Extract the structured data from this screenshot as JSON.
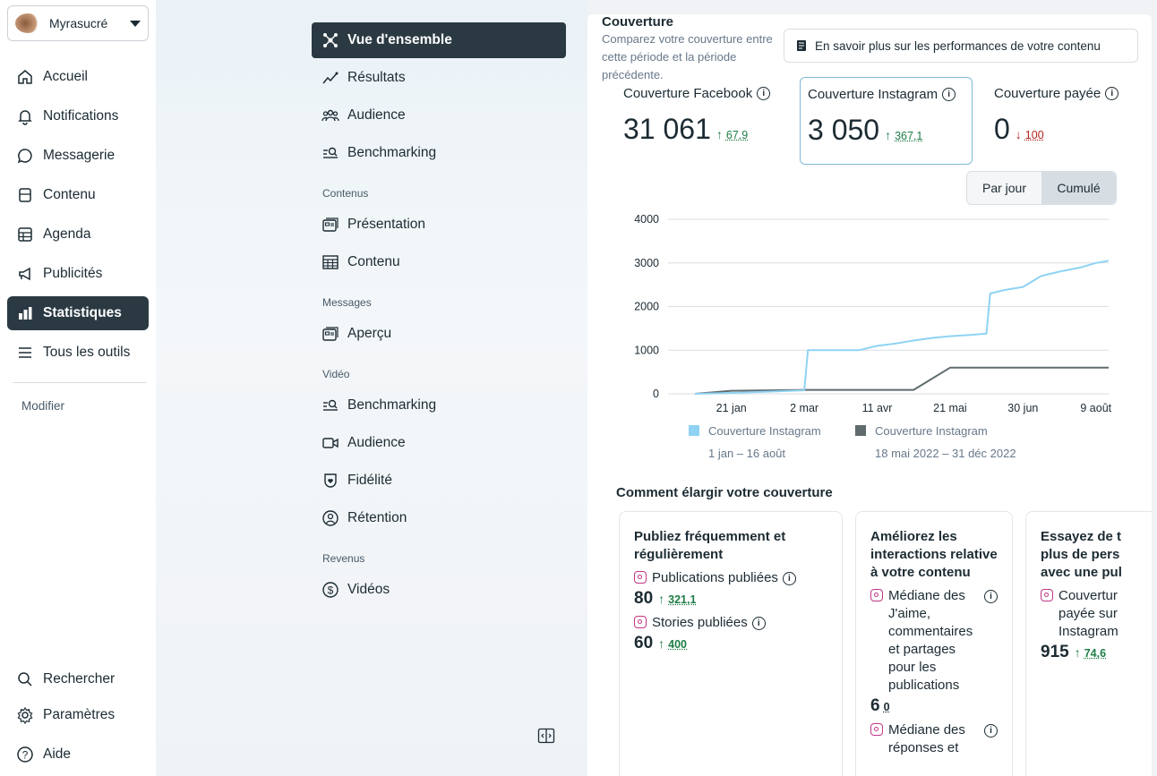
{
  "account": {
    "name": "Myrasucré"
  },
  "leftnav": {
    "items": [
      {
        "label": "Accueil",
        "icon": "home-icon"
      },
      {
        "label": "Notifications",
        "icon": "bell-icon"
      },
      {
        "label": "Messagerie",
        "icon": "chat-icon"
      },
      {
        "label": "Contenu",
        "icon": "content-icon"
      },
      {
        "label": "Agenda",
        "icon": "calendar-icon"
      },
      {
        "label": "Publicités",
        "icon": "megaphone-icon"
      },
      {
        "label": "Statistiques",
        "icon": "bar-chart-icon",
        "active": true
      },
      {
        "label": "Tous les outils",
        "icon": "menu-icon"
      }
    ],
    "modifier": "Modifier",
    "bottom": [
      {
        "label": "Rechercher",
        "icon": "search-icon"
      },
      {
        "label": "Paramètres",
        "icon": "gear-icon"
      },
      {
        "label": "Aide",
        "icon": "help-icon"
      }
    ]
  },
  "subnav": {
    "items": [
      {
        "label": "Vue d'ensemble",
        "icon": "overview-icon",
        "active": true
      },
      {
        "label": "Résultats",
        "icon": "trend-icon"
      },
      {
        "label": "Audience",
        "icon": "people-icon"
      },
      {
        "label": "Benchmarking",
        "icon": "benchmark-icon"
      }
    ],
    "sections": [
      {
        "heading": "Contenus",
        "items": [
          {
            "label": "Présentation",
            "icon": "presentation-icon"
          },
          {
            "label": "Contenu",
            "icon": "table-icon"
          }
        ]
      },
      {
        "heading": "Messages",
        "items": [
          {
            "label": "Aperçu",
            "icon": "message-preview-icon"
          }
        ]
      },
      {
        "heading": "Vidéo",
        "items": [
          {
            "label": "Benchmarking",
            "icon": "benchmark-icon"
          },
          {
            "label": "Audience",
            "icon": "video-icon"
          },
          {
            "label": "Fidélité",
            "icon": "shield-icon"
          },
          {
            "label": "Rétention",
            "icon": "person-circle-icon"
          }
        ]
      },
      {
        "heading": "Revenus",
        "items": [
          {
            "label": "Vidéos",
            "icon": "dollar-icon"
          }
        ]
      }
    ]
  },
  "card": {
    "title": "Couverture",
    "description": "Comparez votre couverture entre cette période et la période précédente.",
    "learn_more": "En savoir plus sur les performances de votre contenu",
    "metrics": [
      {
        "label": "Couverture Facebook",
        "value": "31 061",
        "delta": "67,9",
        "direction": "up"
      },
      {
        "label": "Couverture Instagram",
        "value": "3 050",
        "delta": "367,1",
        "direction": "up",
        "selected": true
      },
      {
        "label": "Couverture payée",
        "value": "0",
        "delta": "100",
        "direction": "down"
      }
    ],
    "toggle": {
      "per_day": "Par jour",
      "cumulative": "Cumulé",
      "selected": "cumulative"
    },
    "section_title": "Comment élargir votre couverture",
    "tips": [
      {
        "title": "Publiez fréquemment et régulièrement",
        "rows": [
          {
            "label": "Publications publiées",
            "value": "80",
            "delta": "321,1"
          },
          {
            "label": "Stories publiées",
            "value": "60",
            "delta": "400"
          }
        ]
      },
      {
        "title": "Améliorez les interactions relative à votre contenu",
        "rows": [
          {
            "label": "Médiane des J'aime, commentaires et partages pour les publications",
            "value": "6",
            "delta": "0"
          },
          {
            "label": "Médiane des réponses et",
            "value": "",
            "delta": ""
          }
        ]
      },
      {
        "title": "Essayez de t plus de pers avec une pul",
        "rows": [
          {
            "label": "Couvertur payée sur Instagram",
            "value": "915",
            "delta": "74,6"
          }
        ]
      }
    ]
  },
  "chart_data": {
    "type": "line",
    "x_ticks": [
      "21 jan",
      "2 mar",
      "11 avr",
      "21 mai",
      "30 jun",
      "9 août"
    ],
    "ylim": [
      0,
      4000
    ],
    "y_ticks": [
      0,
      1000,
      2000,
      3000,
      4000
    ],
    "grid": true,
    "legend_position": "bottom",
    "series": [
      {
        "name": "Couverture Instagram",
        "period": "1 jan – 16 août",
        "color": "#8fd3f4",
        "x": [
          "1 jan",
          "21 jan",
          "10 fév",
          "2 mar",
          "4 mar",
          "21 mar",
          "1 avr",
          "11 avr",
          "21 avr",
          "1 mai",
          "11 mai",
          "21 mai",
          "1 jun",
          "10 jun",
          "12 jun",
          "20 jun",
          "30 jun",
          "10 jul",
          "20 jul",
          "1 août",
          "9 août",
          "16 août"
        ],
        "y": [
          0,
          20,
          50,
          80,
          1000,
          1000,
          1000,
          1100,
          1150,
          1220,
          1280,
          1320,
          1350,
          1380,
          2300,
          2380,
          2450,
          2700,
          2800,
          2900,
          3000,
          3050
        ]
      },
      {
        "name": "Couverture Instagram",
        "period": "18 mai 2022 – 31 déc 2022",
        "color": "#5f6b6d",
        "x": [
          "1 jan",
          "21 jan",
          "2 mar",
          "11 avr",
          "1 mai",
          "21 mai",
          "30 jun",
          "9 août",
          "16 août"
        ],
        "y": [
          0,
          70,
          90,
          90,
          90,
          600,
          600,
          600,
          600
        ]
      }
    ]
  }
}
